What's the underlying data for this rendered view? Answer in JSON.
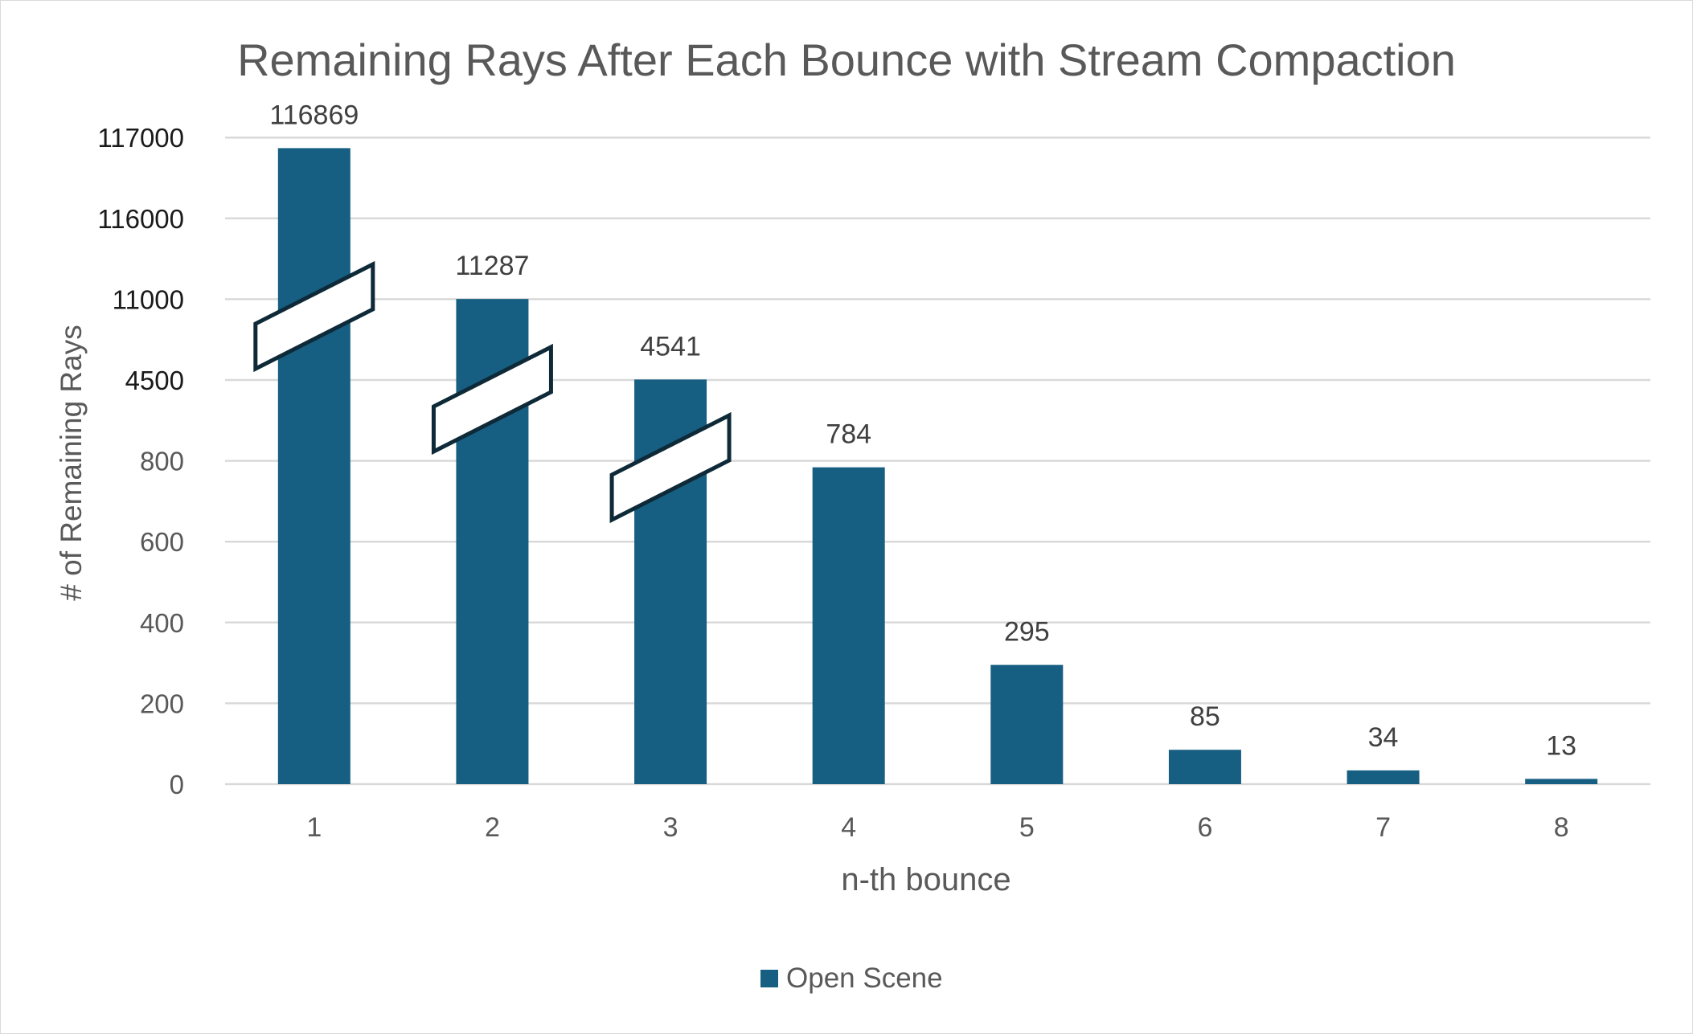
{
  "chart_data": {
    "type": "bar",
    "title": "Remaining Rays After Each Bounce with Stream Compaction",
    "xlabel": "n-th bounce",
    "ylabel": "# of Remaining Rays",
    "categories": [
      "1",
      "2",
      "3",
      "4",
      "5",
      "6",
      "7",
      "8"
    ],
    "series": [
      {
        "name": "Open Scene",
        "values": [
          116869,
          11287,
          4541,
          784,
          295,
          85,
          34,
          13
        ]
      }
    ],
    "data_labels": [
      "116869",
      "11287",
      "4541",
      "784",
      "295",
      "85",
      "34",
      "13"
    ],
    "y_tick_labels": [
      "0",
      "200",
      "400",
      "600",
      "800",
      "4500",
      "11000",
      "116000",
      "117000"
    ],
    "y_tick_values": [
      0,
      200,
      400,
      600,
      800,
      4500,
      11000,
      116000,
      117000
    ],
    "axis_breaks": [
      "1",
      "2",
      "3"
    ],
    "scale": "broken",
    "grid": true,
    "legend_position": "bottom",
    "colors": {
      "bar": "#175f82",
      "grid": "#d9d9d9",
      "title": "#595959",
      "axis_text": "#595959",
      "break_outline": "#0e2a38"
    }
  }
}
